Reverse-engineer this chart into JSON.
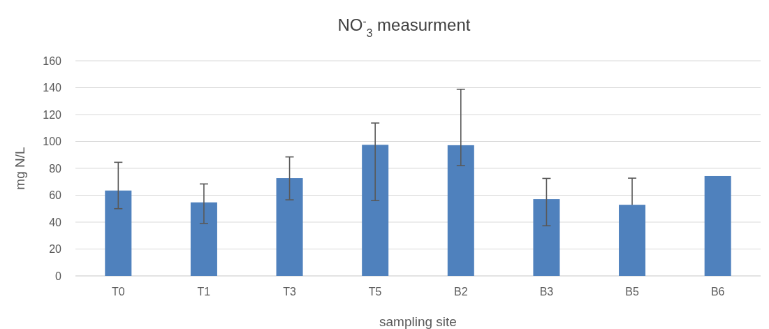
{
  "chart_data": {
    "type": "bar",
    "title": "NO$^{-}$$_{3}$ measurment",
    "xlabel": "sampling site",
    "ylabel": "mg N/L",
    "categories": [
      "T0",
      "T1",
      "T3",
      "T5",
      "B2",
      "B3",
      "B5",
      "B6"
    ],
    "values": [
      63.5,
      54.7,
      72.7,
      97.5,
      97.2,
      57.1,
      52.9,
      74.3
    ],
    "errors": [
      [
        50,
        84.5
      ],
      [
        39,
        68.4
      ],
      [
        56.6,
        88.5
      ],
      [
        56,
        113.7
      ],
      [
        82,
        138.8
      ],
      [
        37.3,
        72.5
      ],
      [
        52.9,
        72.7
      ],
      null
    ],
    "color": "#4f81bd",
    "ylim": [
      0,
      160
    ],
    "yticks": [
      0,
      20,
      40,
      60,
      80,
      100,
      120,
      140,
      160
    ],
    "grid": "y"
  }
}
